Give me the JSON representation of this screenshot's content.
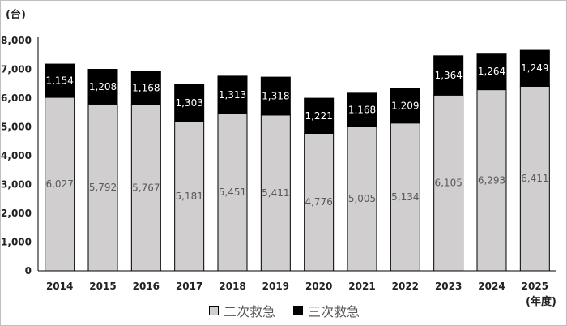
{
  "chart_data": {
    "type": "bar",
    "stacked": true,
    "y_unit": "(台)",
    "x_unit": "(年度)",
    "categories": [
      "2014",
      "2015",
      "2016",
      "2017",
      "2018",
      "2019",
      "2020",
      "2021",
      "2022",
      "2023",
      "2024",
      "2025"
    ],
    "series": [
      {
        "name": "二次救急",
        "values": [
          6027,
          5792,
          5767,
          5181,
          5451,
          5411,
          4776,
          5005,
          5134,
          6105,
          6293,
          6411
        ],
        "labels": [
          "6,027",
          "5,792",
          "5,767",
          "5,181",
          "5,451",
          "5,411",
          "4,776",
          "5,005",
          "5,134",
          "6,105",
          "6,293",
          "6,411"
        ],
        "color": "#d0cece"
      },
      {
        "name": "三次救急",
        "values": [
          1154,
          1208,
          1168,
          1303,
          1313,
          1318,
          1221,
          1168,
          1209,
          1364,
          1264,
          1249
        ],
        "labels": [
          "1,154",
          "1,208",
          "1,168",
          "1,303",
          "1,313",
          "1,318",
          "1,221",
          "1,168",
          "1,209",
          "1,364",
          "1,264",
          "1,249"
        ],
        "color": "#000000"
      }
    ],
    "ylim": [
      0,
      8000
    ],
    "yticks": [
      0,
      1000,
      2000,
      3000,
      4000,
      5000,
      6000,
      7000,
      8000
    ],
    "ytick_labels": [
      "0",
      "1,000",
      "2,000",
      "3,000",
      "4,000",
      "5,000",
      "6,000",
      "7,000",
      "8,000"
    ],
    "grid": false,
    "legend_position": "bottom"
  }
}
